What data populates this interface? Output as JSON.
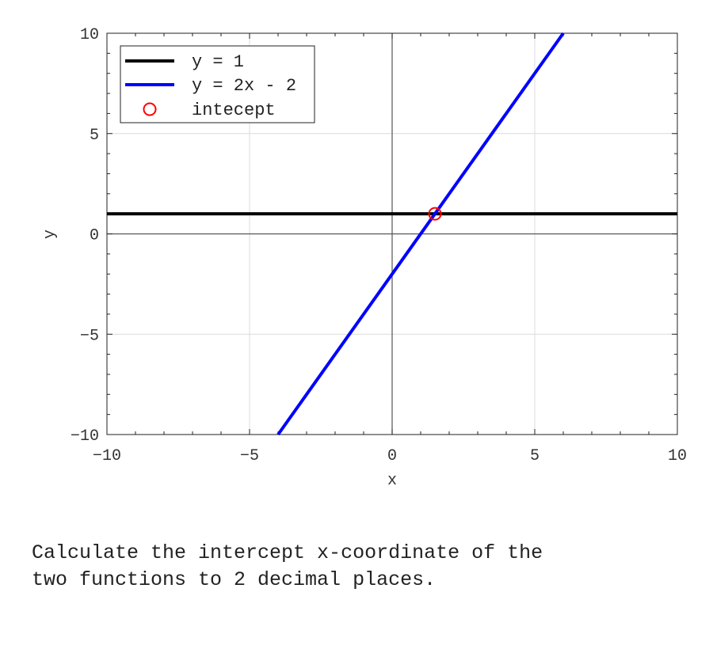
{
  "chart_data": {
    "type": "line",
    "title": "",
    "xlabel": "x",
    "ylabel": "y",
    "xlim": [
      -10,
      10
    ],
    "ylim": [
      -10,
      10
    ],
    "xticks": [
      -10,
      -5,
      0,
      5,
      10
    ],
    "yticks": [
      -10,
      -5,
      0,
      5,
      10
    ],
    "grid": true,
    "legend_position": "top-left",
    "series": [
      {
        "name": "y = 1",
        "type": "line",
        "x": [
          -10,
          10
        ],
        "y": [
          1,
          1
        ],
        "color": "#000000"
      },
      {
        "name": "y = 2x - 2",
        "type": "line",
        "x": [
          -4,
          6
        ],
        "y": [
          -10,
          10
        ],
        "color": "#0000ff"
      },
      {
        "name": "intecept",
        "type": "scatter",
        "marker": "circle-open",
        "x": [
          1.5
        ],
        "y": [
          1
        ],
        "color": "#ff0000"
      }
    ]
  },
  "question": "Calculate the intercept x-coordinate of the\ntwo functions to 2 decimal places."
}
